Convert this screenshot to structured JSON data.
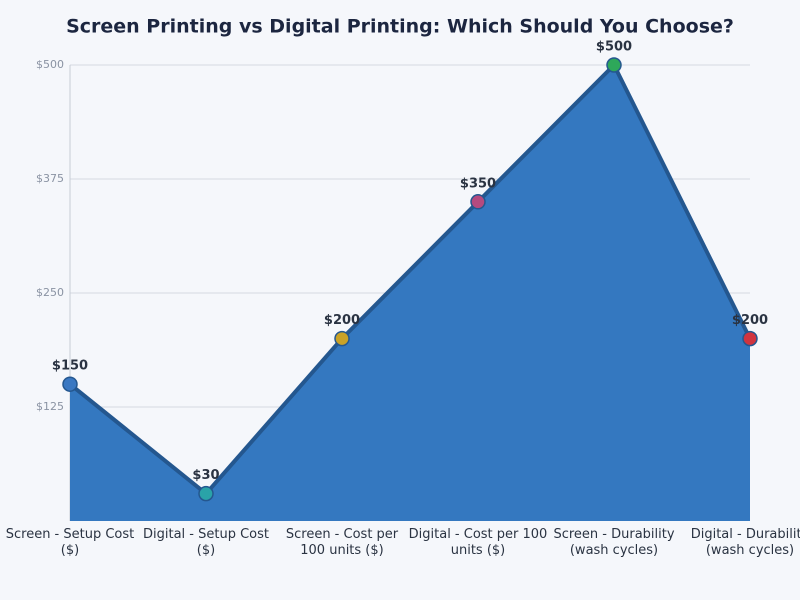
{
  "chart_data": {
    "type": "area",
    "title": "Screen Printing vs Digital Printing: Which Should You Choose?",
    "categories": [
      "Screen - Setup Cost ($)",
      "Digital - Setup Cost ($)",
      "Screen - Cost per 100 units ($)",
      "Digital - Cost per 100 units ($)",
      "Screen - Durability (wash cycles)",
      "Digital - Durability (wash cycles)"
    ],
    "values": [
      150,
      30,
      200,
      350,
      500,
      200
    ],
    "value_labels": [
      "$150",
      "$30",
      "$200",
      "$350",
      "$500",
      "$200"
    ],
    "color": "#3478c0",
    "line_color": "#24578f",
    "point_colors": [
      "#3a78c2",
      "#2aa3a8",
      "#c9a227",
      "#b54a7f",
      "#2ea85a",
      "#d0343f"
    ],
    "ylim": [
      0,
      500
    ],
    "yticks": [
      {
        "value": 125,
        "label": "$125"
      },
      {
        "value": 250,
        "label": "$250"
      },
      {
        "value": 375,
        "label": "$375"
      },
      {
        "value": 500,
        "label": "$500"
      }
    ],
    "grid": true
  }
}
